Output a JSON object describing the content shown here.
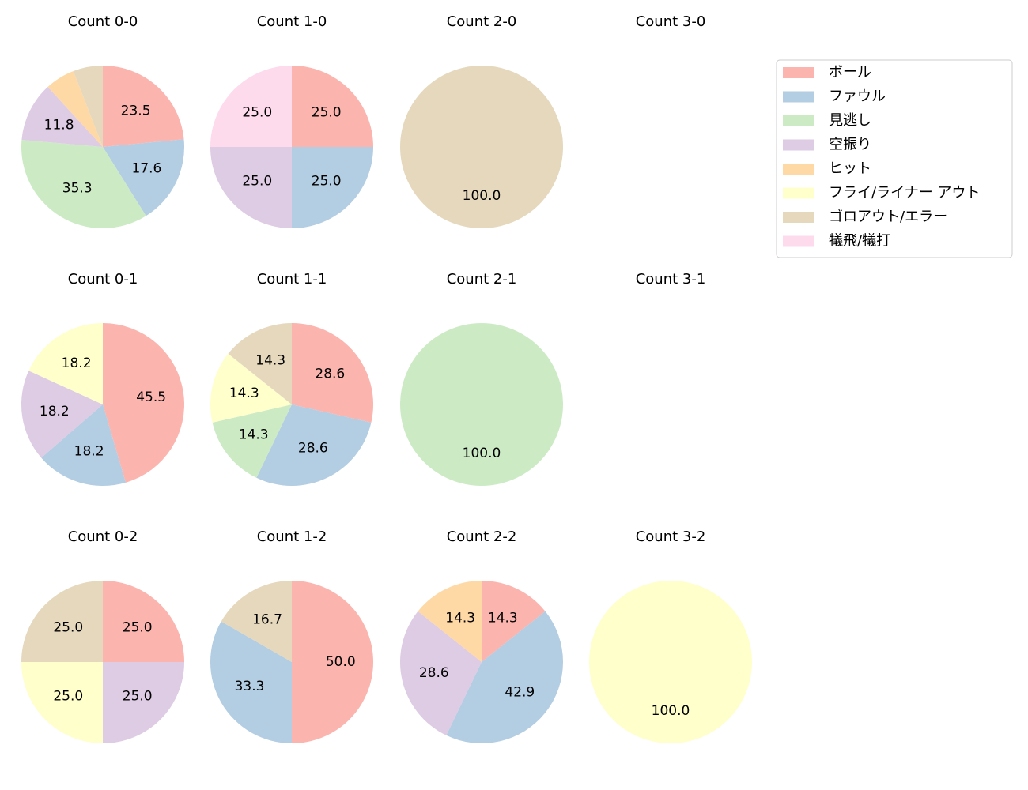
{
  "chart_data": [
    {
      "type": "pie",
      "title": "Count 0-0",
      "values": [
        23.5,
        17.6,
        35.3,
        11.8,
        5.9,
        null,
        5.9,
        null
      ],
      "value_labels": [
        "23.5",
        "17.6",
        "35.3",
        "11.8",
        null,
        null,
        null,
        null
      ]
    },
    {
      "type": "pie",
      "title": "Count 1-0",
      "values": [
        25,
        25,
        null,
        25,
        null,
        null,
        null,
        25
      ],
      "value_labels": [
        "25.0",
        "25.0",
        null,
        "25.0",
        null,
        null,
        null,
        "25.0"
      ]
    },
    {
      "type": "pie",
      "title": "Count 2-0",
      "values": [
        null,
        null,
        null,
        null,
        null,
        null,
        100,
        null
      ],
      "value_labels": [
        null,
        null,
        null,
        null,
        null,
        null,
        "100.0",
        null
      ]
    },
    {
      "type": "pie",
      "title": "Count 3-0",
      "values": [
        null,
        null,
        null,
        null,
        null,
        null,
        null,
        null
      ]
    },
    {
      "type": "pie",
      "title": "Count 0-1",
      "values": [
        45.5,
        18.2,
        null,
        18.2,
        null,
        18.2,
        null,
        null
      ],
      "value_labels": [
        "45.5",
        "18.2",
        null,
        "18.2",
        null,
        "18.2",
        null,
        null
      ]
    },
    {
      "type": "pie",
      "title": "Count 1-1",
      "values": [
        28.6,
        28.6,
        14.3,
        null,
        null,
        14.3,
        14.3,
        null
      ],
      "value_labels": [
        "28.6",
        "28.6",
        "14.3",
        null,
        null,
        "14.3",
        "14.3",
        null
      ]
    },
    {
      "type": "pie",
      "title": "Count 2-1",
      "values": [
        null,
        null,
        100,
        null,
        null,
        null,
        null,
        null
      ],
      "value_labels": [
        null,
        null,
        "100.0",
        null,
        null,
        null,
        null,
        null
      ]
    },
    {
      "type": "pie",
      "title": "Count 3-1",
      "values": [
        null,
        null,
        null,
        null,
        null,
        null,
        null,
        null
      ]
    },
    {
      "type": "pie",
      "title": "Count 0-2",
      "values": [
        25,
        null,
        null,
        25,
        null,
        25,
        25,
        null
      ],
      "value_labels": [
        "25.0",
        null,
        null,
        "25.0",
        null,
        "25.0",
        "25.0",
        null
      ]
    },
    {
      "type": "pie",
      "title": "Count 1-2",
      "values": [
        50,
        33.3,
        null,
        null,
        null,
        null,
        16.7,
        null
      ],
      "value_labels": [
        "50.0",
        "33.3",
        null,
        null,
        null,
        null,
        "16.7",
        null
      ]
    },
    {
      "type": "pie",
      "title": "Count 2-2",
      "values": [
        14.3,
        42.9,
        null,
        28.6,
        14.3,
        null,
        null,
        null
      ],
      "value_labels": [
        "14.3",
        "42.9",
        null,
        "28.6",
        "14.3",
        null,
        null,
        null
      ]
    },
    {
      "type": "pie",
      "title": "Count 3-2",
      "values": [
        null,
        null,
        null,
        null,
        null,
        100,
        null,
        null
      ],
      "value_labels": [
        null,
        null,
        null,
        null,
        null,
        "100.0",
        null,
        null
      ]
    }
  ],
  "legend": {
    "categories": [
      "ボール",
      "ファウル",
      "見逃し",
      "空振り",
      "ヒット",
      "フライ/ライナー アウト",
      "ゴロアウト/エラー",
      "犠飛/犠打"
    ],
    "colors": [
      "#fbb4ae",
      "#b3cde3",
      "#ccebc5",
      "#decbe4",
      "#fed9a6",
      "#ffffcc",
      "#e5d8bd",
      "#fddaec"
    ]
  }
}
